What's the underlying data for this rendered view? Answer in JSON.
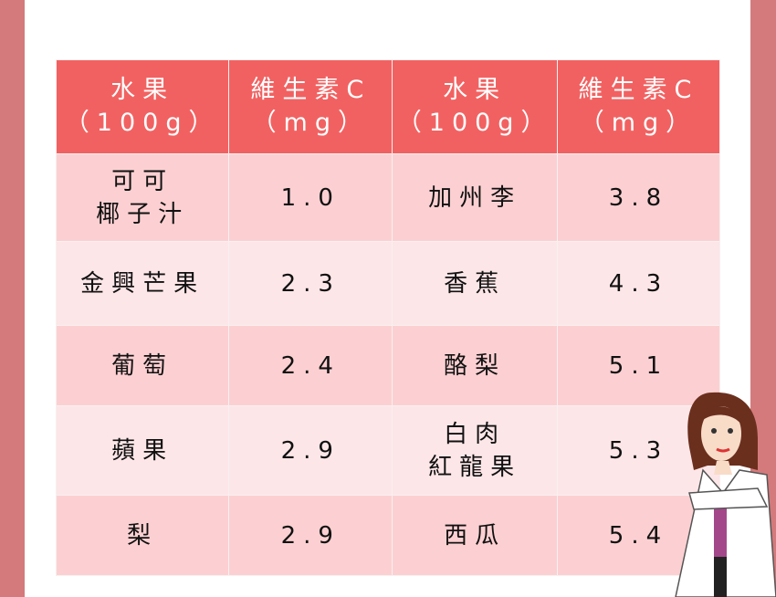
{
  "header": [
    {
      "line1": "水果",
      "line2": "（100g）"
    },
    {
      "line1": "維生素C",
      "line2": "（mg）"
    },
    {
      "line1": "水果",
      "line2": "（100g）"
    },
    {
      "line1": "維生素C",
      "line2": "（mg）"
    }
  ],
  "rows": [
    {
      "fruit1": [
        "可可",
        "椰子汁"
      ],
      "vc1": "1.0",
      "fruit2": [
        "加州李"
      ],
      "vc2": "3.8"
    },
    {
      "fruit1": [
        "金興芒果"
      ],
      "vc1": "2.3",
      "fruit2": [
        "香蕉"
      ],
      "vc2": "4.3"
    },
    {
      "fruit1": [
        "葡萄"
      ],
      "vc1": "2.4",
      "fruit2": [
        "酪梨"
      ],
      "vc2": "5.1"
    },
    {
      "fruit1": [
        "蘋果"
      ],
      "vc1": "2.9",
      "fruit2": [
        "白肉",
        "紅龍果"
      ],
      "vc2": "5.3"
    },
    {
      "fruit1": [
        "梨"
      ],
      "vc1": "2.9",
      "fruit2": [
        "西瓜"
      ],
      "vc2": "5.4"
    }
  ],
  "colors": {
    "header": "#f26161",
    "row_odd": "#fcd0d2",
    "row_even": "#fde6e8",
    "side_bar": "#d47a7c"
  },
  "illustration": "doctor-woman-icon"
}
